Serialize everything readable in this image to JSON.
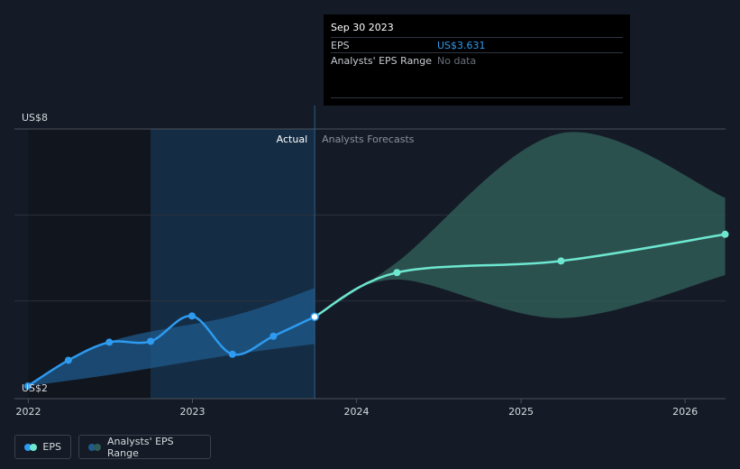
{
  "chart_data": {
    "type": "line",
    "title": "",
    "xlabel": "",
    "ylabel": "",
    "x_axis": {
      "type": "date",
      "range": [
        "2021-12-01",
        "2026-04-01"
      ],
      "ticks": [
        "2022",
        "2023",
        "2024",
        "2025",
        "2026"
      ]
    },
    "y_axis": {
      "range": [
        2,
        8
      ],
      "tick_labels": [
        "US$2",
        "US$8"
      ],
      "grid": true
    },
    "regions": {
      "actual_label": "Actual",
      "forecast_label": "Analysts Forecasts",
      "divider_date": "2023-09-30"
    },
    "series": [
      {
        "name": "EPS",
        "kind": "actual",
        "color": "#2d9bf0",
        "points": [
          {
            "x": "2021-12-31",
            "y": 2.02
          },
          {
            "x": "2022-03-31",
            "y": 2.62
          },
          {
            "x": "2022-06-30",
            "y": 3.04
          },
          {
            "x": "2022-09-30",
            "y": 3.06
          },
          {
            "x": "2022-12-31",
            "y": 3.65
          },
          {
            "x": "2023-03-31",
            "y": 2.76
          },
          {
            "x": "2023-06-30",
            "y": 3.18
          },
          {
            "x": "2023-09-30",
            "y": 3.631
          }
        ]
      },
      {
        "name": "EPS",
        "kind": "forecast",
        "color": "#6ee7d0",
        "points": [
          {
            "x": "2023-09-30",
            "y": 3.631
          },
          {
            "x": "2024-03-31",
            "y": 4.66
          },
          {
            "x": "2025-03-31",
            "y": 4.93
          },
          {
            "x": "2026-03-31",
            "y": 5.55
          }
        ]
      },
      {
        "name": "Analysts' EPS Range",
        "kind": "forecast-range",
        "color": "#2f5b57",
        "upper": [
          {
            "x": "2023-09-30",
            "y": 3.631
          },
          {
            "x": "2024-03-31",
            "y": 4.9
          },
          {
            "x": "2025-03-31",
            "y": 7.9
          },
          {
            "x": "2026-03-31",
            "y": 6.4
          }
        ],
        "lower": [
          {
            "x": "2023-09-30",
            "y": 3.631
          },
          {
            "x": "2024-03-31",
            "y": 4.5
          },
          {
            "x": "2025-03-31",
            "y": 3.6
          },
          {
            "x": "2026-03-31",
            "y": 4.6
          }
        ]
      },
      {
        "name": "Historical EPS range",
        "kind": "actual-range",
        "color": "#1f5a8c",
        "upper": [
          {
            "x": "2021-12-31",
            "y": 2.02
          },
          {
            "x": "2022-06-30",
            "y": 3.05
          },
          {
            "x": "2023-03-31",
            "y": 3.65
          },
          {
            "x": "2023-09-30",
            "y": 4.3
          }
        ],
        "lower": [
          {
            "x": "2021-12-31",
            "y": 2.02
          },
          {
            "x": "2022-06-30",
            "y": 2.28
          },
          {
            "x": "2023-03-31",
            "y": 2.75
          },
          {
            "x": "2023-09-30",
            "y": 3.0
          }
        ]
      }
    ]
  },
  "tooltip": {
    "date": "Sep 30 2023",
    "rows": [
      {
        "label": "EPS",
        "value": "US$3.631",
        "color": "#2d9bf0"
      },
      {
        "label": "Analysts' EPS Range",
        "value": "No data",
        "color": "#6b717b"
      }
    ]
  },
  "legend": {
    "items": [
      {
        "label": "EPS",
        "colors": [
          "#2d9bf0",
          "#6ee7d0"
        ]
      },
      {
        "label": "Analysts' EPS Range",
        "colors": [
          "#1f5a8c",
          "#2f5b57"
        ]
      }
    ]
  }
}
